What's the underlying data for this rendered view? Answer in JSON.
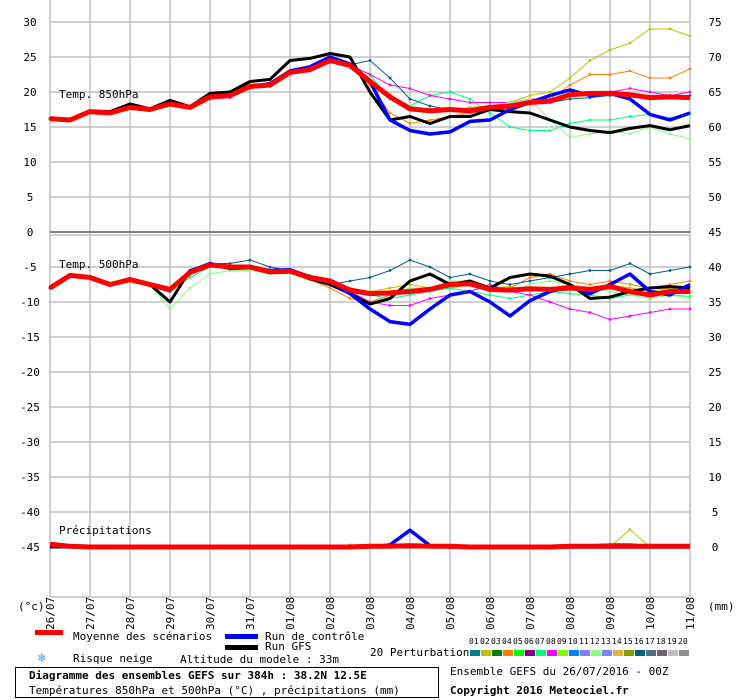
{
  "chart_data": {
    "type": "line",
    "title": "Diagramme des ensembles GEFS sur 384h : 38.2N 12.5E",
    "subtitle": "Températures 850hPa et 500hPa (°C) , précipitations (mm)",
    "run_info": "Ensemble GEFS du 26/07/2016 - 00Z",
    "copyright": "Copyright 2016 Meteociel.fr",
    "left_unit": "(°c)",
    "right_unit": "(mm)",
    "left_ticks": [
      "30",
      "25",
      "20",
      "15",
      "10",
      "5",
      "0",
      "-5",
      "-10",
      "-15",
      "-20",
      "-25",
      "-30",
      "-35",
      "-40",
      "-45"
    ],
    "left_tick_values": [
      30,
      25,
      20,
      15,
      10,
      5,
      0,
      -5,
      -10,
      -15,
      -20,
      -25,
      -30,
      -35,
      -40,
      -45
    ],
    "right_ticks": [
      "75",
      "70",
      "65",
      "60",
      "55",
      "50",
      "45",
      "40",
      "35",
      "30",
      "25",
      "20",
      "15",
      "10",
      "5",
      "0"
    ],
    "ylim": [
      -52,
      33
    ],
    "x_categories": [
      "26/07",
      "27/07",
      "28/07",
      "29/07",
      "30/07",
      "31/07",
      "01/08",
      "02/08",
      "03/08",
      "04/08",
      "05/08",
      "06/08",
      "07/08",
      "08/08",
      "09/08",
      "10/08",
      "11/08"
    ],
    "x_step_days": 0.5,
    "panel_labels": {
      "t850": "Temp. 850hPa",
      "t500": "Temp. 500hPa",
      "precip": "Précipitations"
    },
    "precip_offset": -45,
    "series": [
      {
        "name": "Moyenne des scénarios",
        "key": "mean",
        "color": "#ff0000",
        "t850": [
          16.2,
          16.0,
          17.2,
          17.0,
          17.8,
          17.5,
          18.3,
          17.8,
          19.3,
          19.5,
          20.8,
          21.0,
          22.8,
          23.2,
          24.5,
          23.8,
          21.5,
          19.3,
          17.6,
          17.3,
          17.5,
          17.3,
          17.8,
          18.0,
          18.5,
          18.7,
          19.6,
          19.8,
          19.8,
          19.6,
          19.2,
          19.3,
          19.2
        ],
        "t500": [
          -8.0,
          -6.2,
          -6.5,
          -7.5,
          -6.8,
          -7.5,
          -8.2,
          -5.8,
          -4.7,
          -5.0,
          -5.0,
          -5.7,
          -5.6,
          -6.5,
          -7.0,
          -8.3,
          -8.8,
          -8.7,
          -8.5,
          -8.2,
          -7.5,
          -7.4,
          -8.2,
          -8.3,
          -8.1,
          -8.2,
          -8.0,
          -8.2,
          -7.8,
          -8.5,
          -9.0,
          -8.5,
          -8.5
        ],
        "precip": [
          0.4,
          0.1,
          0,
          0,
          0,
          0,
          0,
          0,
          0,
          0,
          0,
          0,
          0,
          0,
          0,
          0,
          0.1,
          0.1,
          0.2,
          0.1,
          0.1,
          0,
          0,
          0,
          0,
          0,
          0.1,
          0.1,
          0.1,
          0.1,
          0.1,
          0.1,
          0.1
        ]
      },
      {
        "name": "Run de contrôle",
        "key": "control",
        "color": "#0000ff",
        "t850": [
          16.1,
          16.1,
          17.1,
          17.1,
          17.7,
          17.6,
          18.2,
          17.9,
          19.2,
          19.6,
          20.7,
          21.2,
          23.0,
          23.6,
          25.0,
          24.0,
          21.5,
          16.0,
          14.5,
          14.0,
          14.3,
          15.8,
          16.0,
          17.5,
          18.5,
          19.5,
          20.3,
          19.5,
          19.8,
          19.0,
          16.8,
          16.0,
          17.0
        ],
        "t500": [
          -8.0,
          -6.3,
          -6.4,
          -7.6,
          -6.7,
          -7.6,
          -8.4,
          -5.6,
          -4.5,
          -5.2,
          -5.1,
          -5.5,
          -5.4,
          -6.4,
          -7.2,
          -8.8,
          -11.0,
          -12.8,
          -13.2,
          -11.0,
          -9.0,
          -8.5,
          -10.0,
          -12.0,
          -9.8,
          -8.5,
          -7.8,
          -8.8,
          -7.5,
          -6.0,
          -8.5,
          -9.0,
          -7.5
        ],
        "precip": [
          0.2,
          0,
          0,
          0,
          0,
          0,
          0,
          0,
          0,
          0,
          0,
          0,
          0,
          0,
          0,
          0,
          0,
          0.3,
          2.4,
          0.2,
          0,
          0,
          0,
          0,
          0,
          0,
          0,
          0,
          0,
          0,
          0,
          0,
          0
        ]
      },
      {
        "name": "Run GFS",
        "key": "gfs",
        "color": "#000000",
        "t850": [
          16.2,
          16.1,
          17.3,
          17.2,
          18.3,
          17.6,
          18.8,
          17.9,
          19.8,
          20.0,
          21.5,
          21.8,
          24.5,
          24.8,
          25.5,
          25.0,
          20.0,
          16.0,
          16.5,
          15.5,
          16.5,
          16.5,
          17.5,
          17.2,
          17.0,
          16.0,
          15.0,
          14.5,
          14.2,
          14.8,
          15.2,
          14.6,
          15.2
        ],
        "t500": [
          -8.0,
          -6.2,
          -6.5,
          -7.5,
          -6.8,
          -7.5,
          -10.0,
          -5.5,
          -4.6,
          -5.0,
          -5.1,
          -5.8,
          -5.7,
          -6.7,
          -7.5,
          -8.8,
          -10.3,
          -9.5,
          -7.0,
          -6.0,
          -7.5,
          -7.0,
          -8.0,
          -6.5,
          -6.0,
          -6.3,
          -7.5,
          -9.5,
          -9.3,
          -8.5,
          -8.0,
          -7.8,
          -8.0
        ],
        "precip": [
          0,
          0,
          0,
          0,
          0,
          0,
          0,
          0,
          0,
          0,
          0,
          0,
          0,
          0,
          0,
          0,
          0,
          0,
          0,
          0,
          0,
          0,
          0,
          0,
          0,
          0,
          0,
          0.2,
          0.3,
          0.3,
          0.1,
          0,
          0
        ]
      }
    ],
    "perturbations": [
      {
        "id": "02",
        "color": "#c0c000",
        "t850": [
          16.0,
          16.2,
          17.0,
          17.2,
          17.6,
          17.7,
          18.1,
          18.0,
          19.1,
          19.7,
          20.6,
          21.2,
          22.6,
          23.4,
          24.2,
          24.0,
          22.0,
          19.5,
          17.8,
          17.6,
          17.4,
          17.8,
          18.0,
          18.5,
          19.5,
          20.0,
          22.0,
          24.5,
          26.0,
          27.0,
          29.0,
          29.0,
          28.0
        ],
        "t500": [
          -8.1,
          -6.3,
          -6.4,
          -7.4,
          -6.9,
          -7.4,
          -8.0,
          -5.9,
          -4.8,
          -4.9,
          -5.2,
          -5.6,
          -5.8,
          -6.3,
          -7.2,
          -8.0,
          -8.5,
          -8.0,
          -7.5,
          -8.0,
          -7.0,
          -7.5,
          -8.0,
          -7.8,
          -8.5,
          -8.0,
          -7.5,
          -8.0,
          -7.5,
          -8.0,
          -8.5,
          -8.0,
          -8.5
        ],
        "precip": [
          0,
          0,
          0,
          0,
          0,
          0,
          0,
          0,
          0,
          0,
          0,
          0,
          0,
          0,
          0,
          0,
          0,
          0,
          0,
          0,
          0,
          0,
          0,
          0,
          0,
          0,
          0,
          0,
          0,
          2.5,
          0,
          0,
          0
        ]
      },
      {
        "id": "04",
        "color": "#ff8000",
        "t850": [
          16.3,
          15.9,
          17.3,
          16.9,
          17.9,
          17.4,
          18.4,
          17.7,
          19.4,
          19.4,
          20.9,
          20.9,
          22.9,
          23.1,
          24.6,
          23.6,
          21.0,
          17.0,
          15.5,
          16.0,
          16.5,
          17.0,
          17.5,
          18.0,
          18.5,
          19.0,
          21.0,
          22.5,
          22.5,
          23.0,
          22.0,
          22.0,
          23.3
        ],
        "t500": [
          -7.9,
          -6.1,
          -6.6,
          -7.6,
          -6.7,
          -7.6,
          -8.5,
          -6.0,
          -4.6,
          -5.1,
          -4.9,
          -5.8,
          -5.5,
          -6.8,
          -8.0,
          -9.5,
          -10.0,
          -9.0,
          -8.5,
          -8.0,
          -8.0,
          -7.5,
          -8.5,
          -8.0,
          -6.5,
          -6.0,
          -7.0,
          -7.5,
          -7.0,
          -7.5,
          -8.0,
          -7.5,
          -7.0
        ],
        "precip": [
          0,
          0,
          0,
          0,
          0,
          0,
          0,
          0,
          0,
          0,
          0,
          0,
          0,
          0,
          0,
          0.3,
          0.3,
          0,
          0,
          0,
          0,
          0,
          0,
          0,
          0,
          0,
          0,
          0,
          0,
          0,
          0,
          0,
          0
        ]
      },
      {
        "id": "07",
        "color": "#00ff80",
        "t850": [
          16.1,
          16.0,
          17.2,
          17.1,
          17.8,
          17.5,
          18.2,
          17.8,
          19.2,
          19.4,
          20.7,
          21.0,
          22.6,
          23.0,
          24.2,
          23.8,
          22.5,
          19.0,
          18.0,
          19.5,
          20.0,
          19.0,
          17.0,
          15.0,
          14.5,
          14.5,
          15.5,
          16.0,
          16.0,
          16.5,
          16.8,
          16.3,
          17.0
        ],
        "t500": [
          -8.0,
          -6.2,
          -6.5,
          -7.5,
          -6.8,
          -7.5,
          -8.3,
          -6.5,
          -5.0,
          -5.2,
          -5.0,
          -5.5,
          -5.7,
          -6.2,
          -7.0,
          -8.0,
          -9.0,
          -9.5,
          -9.0,
          -8.5,
          -8.0,
          -8.5,
          -9.0,
          -9.5,
          -9.0,
          -8.5,
          -8.8,
          -9.0,
          -9.5,
          -9.0,
          -9.5,
          -9.0,
          -9.2
        ],
        "precip": [
          0,
          0,
          0,
          0,
          0,
          0,
          0,
          0,
          0,
          0,
          0,
          0,
          0,
          0,
          0,
          0,
          0,
          0,
          0,
          0,
          0,
          0,
          0,
          0,
          0,
          0,
          0,
          0,
          0,
          0,
          0,
          0,
          0
        ]
      },
      {
        "id": "08",
        "color": "#ff00ff",
        "t850": [
          16.2,
          16.1,
          17.1,
          17.0,
          17.7,
          17.5,
          18.3,
          17.9,
          19.0,
          19.2,
          20.5,
          20.8,
          22.6,
          23.0,
          24.4,
          23.9,
          22.5,
          21.0,
          20.5,
          19.5,
          19.0,
          18.5,
          18.5,
          18.5,
          19.0,
          19.0,
          19.5,
          19.5,
          20.0,
          20.5,
          20.0,
          19.5,
          20.0
        ],
        "t500": [
          -8.0,
          -6.2,
          -6.6,
          -7.5,
          -6.9,
          -7.4,
          -8.3,
          -5.7,
          -4.8,
          -5.3,
          -5.2,
          -5.6,
          -5.5,
          -6.5,
          -7.5,
          -8.5,
          -10.0,
          -10.5,
          -10.5,
          -9.5,
          -9.0,
          -8.5,
          -7.5,
          -8.5,
          -9.0,
          -10.0,
          -11.0,
          -11.5,
          -12.5,
          -12.0,
          -11.5,
          -11.0,
          -11.0
        ],
        "precip": [
          0,
          0,
          0,
          0,
          0,
          0,
          0,
          0,
          0,
          0,
          0,
          0,
          0,
          0,
          0,
          0,
          0,
          0,
          0,
          0,
          0,
          0,
          0,
          0,
          0,
          0,
          0,
          0,
          0,
          0,
          0,
          0,
          0
        ]
      },
      {
        "id": "12",
        "color": "#80ff80",
        "t850": [
          16.2,
          16.0,
          17.2,
          17.0,
          17.8,
          17.5,
          18.3,
          17.8,
          19.3,
          19.5,
          20.8,
          21.0,
          22.8,
          23.2,
          24.5,
          23.8,
          22.0,
          19.5,
          18.0,
          17.5,
          17.8,
          17.5,
          18.0,
          18.5,
          19.0,
          16.0,
          13.5,
          14.0,
          14.5,
          14.0,
          15.0,
          14.0,
          13.3
        ],
        "t500": [
          -8.0,
          -6.2,
          -6.5,
          -7.5,
          -6.8,
          -7.5,
          -11.0,
          -8.0,
          -6.0,
          -5.5,
          -5.5,
          -6.0,
          -5.8,
          -6.6,
          -7.2,
          -8.5,
          -9.0,
          -8.8,
          -8.0,
          -8.0,
          -7.0,
          -7.0,
          -8.0,
          -8.5,
          -7.5,
          -7.0,
          -7.5,
          -8.0,
          -8.5,
          -9.0,
          -9.5,
          -9.0,
          -9.5
        ],
        "precip": [
          0,
          0,
          0,
          0,
          0,
          0,
          0,
          0,
          0,
          0,
          0,
          0,
          0,
          0,
          0,
          0,
          0,
          0,
          0,
          0,
          0,
          0,
          0,
          0,
          0,
          0,
          0,
          0,
          0,
          0,
          0,
          0,
          0
        ]
      },
      {
        "id": "16",
        "color": "#006080",
        "t850": [
          16.2,
          16.1,
          17.2,
          17.0,
          17.8,
          17.6,
          18.3,
          17.8,
          19.3,
          19.6,
          20.8,
          21.1,
          22.8,
          23.3,
          24.6,
          23.9,
          24.5,
          22.0,
          19.0,
          18.0,
          17.5,
          17.5,
          18.0,
          18.0,
          18.5,
          18.5,
          19.0,
          19.2,
          19.5,
          19.3,
          19.0,
          19.5,
          19.5
        ],
        "t500": [
          -8.0,
          -6.2,
          -6.5,
          -7.5,
          -6.8,
          -7.5,
          -8.2,
          -5.5,
          -4.5,
          -4.5,
          -4.0,
          -5.0,
          -5.5,
          -6.5,
          -7.5,
          -7.0,
          -6.5,
          -5.5,
          -4.0,
          -5.0,
          -6.5,
          -6.0,
          -7.0,
          -7.5,
          -7.0,
          -6.5,
          -6.0,
          -5.5,
          -5.5,
          -4.5,
          -6.0,
          -5.5,
          -5.0
        ],
        "precip": [
          0,
          0,
          0,
          0,
          0,
          0,
          0,
          0,
          0,
          0,
          0,
          0,
          0,
          0,
          0,
          0,
          0,
          0,
          0,
          0,
          0,
          0,
          0,
          0,
          0,
          0,
          0,
          0,
          0,
          0,
          0,
          0,
          0
        ]
      }
    ]
  },
  "legend": {
    "mean_label": "Moyenne des scénarios",
    "control_label": "Run de contrôle",
    "gfs_label": "Run GFS",
    "snow_label": "Risque neige",
    "altitude_label": "Altitude du modele : 33m",
    "perturbations_label": "20 Perturbations",
    "perturbation_ids": [
      "01",
      "02",
      "03",
      "04",
      "05",
      "06",
      "07",
      "08",
      "09",
      "10",
      "11",
      "12",
      "13",
      "14",
      "15",
      "16",
      "17",
      "18",
      "19",
      "20"
    ],
    "perturbation_colors": [
      "#008080",
      "#c0c000",
      "#008000",
      "#ff8000",
      "#00ff00",
      "#800080",
      "#00ff80",
      "#ff00ff",
      "#80ff00",
      "#0080ff",
      "#8080ff",
      "#80ff80",
      "#8080ff",
      "#e0b040",
      "#80a000",
      "#006080",
      "#507080",
      "#706070",
      "#c0c0c0",
      "#909090"
    ]
  }
}
